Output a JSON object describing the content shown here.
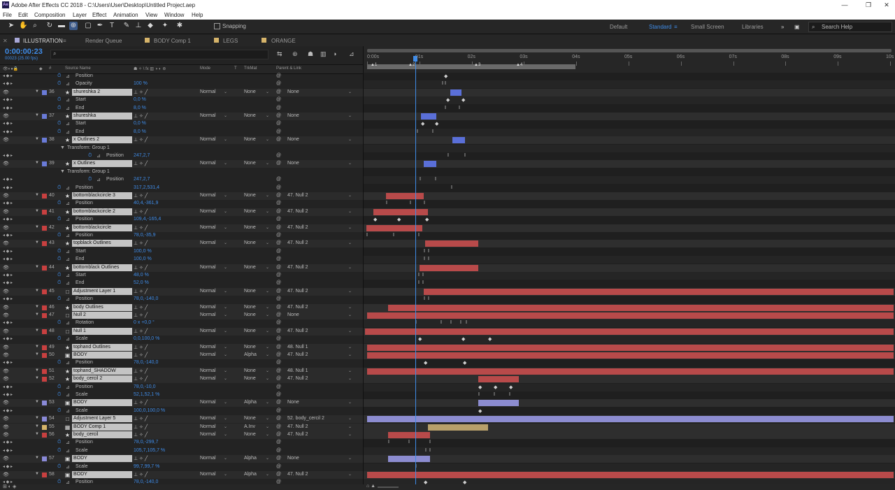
{
  "window": {
    "title": "Adobe After Effects CC 2018 - C:\\Users\\User\\Desktop\\Untitled Project.aep",
    "logo_text": "Ae",
    "minimize": "—",
    "maximize": "❐",
    "close": "✕"
  },
  "menu": [
    "File",
    "Edit",
    "Composition",
    "Layer",
    "Effect",
    "Animation",
    "View",
    "Window",
    "Help"
  ],
  "toolbar": {
    "snapping_label": "Snapping",
    "workspaces": [
      "Default",
      "Standard",
      "Small Screen",
      "Libraries"
    ],
    "active_workspace": "Standard",
    "more": "»",
    "search_help_placeholder": "Search Help"
  },
  "tabs": [
    {
      "label": "ILLUSTRATION",
      "color": "#a8a8d8",
      "active": true
    },
    {
      "label": "Render Queue",
      "color": "",
      "active": false
    },
    {
      "label": "BODY Comp 1",
      "color": "#d6b46a",
      "active": false
    },
    {
      "label": "LEGS",
      "color": "#d6b46a",
      "active": false
    },
    {
      "label": "ORANGE",
      "color": "#d6b46a",
      "active": false
    }
  ],
  "timecode": "0:00:00:23",
  "timecode_sub": "00023 (25.00 fps)",
  "columns": {
    "source_name": "Source Name",
    "mode": "Mode",
    "t": "T",
    "trkmat": "TrkMat",
    "parent": "Parent & Link"
  },
  "ruler": {
    "ticks": [
      "0:00s",
      "01s",
      "02s",
      "03s",
      "04s",
      "05s",
      "06s",
      "07s",
      "08s",
      "09s",
      "10s"
    ],
    "markers": [
      "1",
      "2",
      "3",
      "4"
    ]
  },
  "rows": [
    {
      "kind": "prop",
      "indent": 1,
      "name": "Position",
      "value": "",
      "kfs": [
        115
      ]
    },
    {
      "kind": "prop",
      "indent": 1,
      "name": "Opacity",
      "value": "100 %",
      "kfs": [
        112,
        116
      ]
    },
    {
      "kind": "layer",
      "num": "36",
      "name": "shureshka 2",
      "color": "#6a7bd8",
      "type": "★",
      "mode": "Normal",
      "trk": "None",
      "parent": "None",
      "bar": [
        124,
        140
      ],
      "barcolor": "#5a6fd8"
    },
    {
      "kind": "prop",
      "indent": 1,
      "name": "Start",
      "value": "0,0 %",
      "kfs": [
        118,
        140
      ]
    },
    {
      "kind": "prop",
      "indent": 1,
      "name": "End",
      "value": "8,0 %",
      "kfs": [
        116,
        136
      ]
    },
    {
      "kind": "layer",
      "num": "37",
      "name": "shureshka",
      "color": "#6a7bd8",
      "type": "★",
      "mode": "Normal",
      "trk": "None",
      "parent": "None",
      "bar": [
        82,
        104
      ],
      "barcolor": "#5a6fd8"
    },
    {
      "kind": "prop",
      "indent": 1,
      "name": "Start",
      "value": "0,0 %",
      "kfs": [
        82,
        102
      ]
    },
    {
      "kind": "prop",
      "indent": 1,
      "name": "End",
      "value": "8,0 %",
      "kfs": [
        76,
        98
      ]
    },
    {
      "kind": "layer",
      "num": "38",
      "name": "x Outlines 2",
      "color": "#6a7bd8",
      "type": "★",
      "mode": "Normal",
      "trk": "None",
      "parent": "None",
      "bar": [
        127,
        145
      ],
      "barcolor": "#5a6fd8"
    },
    {
      "kind": "group",
      "indent": 2,
      "name": "Transform: Group 1"
    },
    {
      "kind": "prop",
      "indent": 3,
      "name": "Position",
      "value": "247,2,7",
      "kfs": [
        120,
        144
      ]
    },
    {
      "kind": "layer",
      "num": "39",
      "name": "x Outlines",
      "color": "#6a7bd8",
      "type": "★",
      "mode": "Normal",
      "trk": "None",
      "parent": "None",
      "bar": [
        86,
        104
      ],
      "barcolor": "#5a6fd8"
    },
    {
      "kind": "group",
      "indent": 2,
      "name": "Transform: Group 1"
    },
    {
      "kind": "prop",
      "indent": 3,
      "name": "Position",
      "value": "247,2,7",
      "kfs": [
        80,
        102
      ]
    },
    {
      "kind": "prop",
      "indent": 1,
      "name": "Position",
      "value": "317,2,531,4",
      "kfs": [
        125
      ]
    },
    {
      "kind": "layer",
      "num": "40",
      "name": "bottomblackcircle 3",
      "color": "#c84040",
      "type": "★",
      "mode": "Normal",
      "trk": "None",
      "parent": "47. Null 2",
      "bar": [
        32,
        86
      ],
      "barcolor": "#b84a4a"
    },
    {
      "kind": "prop",
      "indent": 1,
      "name": "Position",
      "value": "40,4,-361,9",
      "kfs": [
        32,
        66,
        86
      ]
    },
    {
      "kind": "layer",
      "num": "41",
      "name": "bottomblackcircle 2",
      "color": "#c84040",
      "type": "★",
      "mode": "Normal",
      "trk": "None",
      "parent": "47. Null 2",
      "bar": [
        14,
        92
      ],
      "barcolor": "#b84a4a"
    },
    {
      "kind": "prop",
      "indent": 1,
      "name": "Position",
      "value": "109,4,-165,4",
      "kfs": [
        14,
        48,
        88
      ]
    },
    {
      "kind": "layer",
      "num": "42",
      "name": "bottomblackcircle",
      "color": "#c84040",
      "type": "★",
      "mode": "Normal",
      "trk": "None",
      "parent": "47. Null 2",
      "bar": [
        4,
        84
      ],
      "barcolor": "#b84a4a"
    },
    {
      "kind": "prop",
      "indent": 1,
      "name": "Position",
      "value": "78,0,-35,9",
      "kfs": [
        4,
        42,
        78
      ]
    },
    {
      "kind": "layer",
      "num": "43",
      "name": "topblack Outlines",
      "color": "#c84040",
      "type": "★",
      "mode": "Normal",
      "trk": "None",
      "parent": "47. Null 2",
      "bar": [
        88,
        164
      ],
      "barcolor": "#b84a4a"
    },
    {
      "kind": "prop",
      "indent": 1,
      "name": "Start",
      "value": "100,0 %",
      "kfs": [
        86,
        92
      ]
    },
    {
      "kind": "prop",
      "indent": 1,
      "name": "End",
      "value": "100,0 %",
      "kfs": [
        86,
        92
      ]
    },
    {
      "kind": "layer",
      "num": "44",
      "name": "bottomblack Outlines",
      "color": "#c84040",
      "type": "★",
      "mode": "Normal",
      "trk": "None",
      "parent": "47. Null 2",
      "bar": [
        80,
        164
      ],
      "barcolor": "#b84a4a"
    },
    {
      "kind": "prop",
      "indent": 1,
      "name": "Start",
      "value": "48,0 %",
      "kfs": [
        78,
        84
      ]
    },
    {
      "kind": "prop",
      "indent": 1,
      "name": "End",
      "value": "52,0 %",
      "kfs": [
        78,
        84
      ]
    },
    {
      "kind": "layer",
      "num": "45",
      "name": "Adjustment Layer 1",
      "color": "#c84040",
      "type": "□",
      "mode": "Normal",
      "trk": "None",
      "parent": "47. Null 2",
      "bar": [
        86,
        758
      ],
      "barcolor": "#b84a4a"
    },
    {
      "kind": "prop",
      "indent": 1,
      "name": "Position",
      "value": "78,0,-140,0",
      "kfs": [
        86,
        92
      ]
    },
    {
      "kind": "layer",
      "num": "46",
      "name": "body Outlines",
      "color": "#c84040",
      "type": "★",
      "mode": "Normal",
      "trk": "None",
      "parent": "47. Null 2",
      "bar": [
        35,
        758
      ],
      "barcolor": "#b84a4a"
    },
    {
      "kind": "layer",
      "num": "47",
      "name": "Null 2",
      "color": "#c84040",
      "type": "□",
      "mode": "Normal",
      "trk": "None",
      "parent": "None",
      "bar": [
        5,
        758
      ],
      "barcolor": "#b84a4a"
    },
    {
      "kind": "prop",
      "indent": 1,
      "name": "Rotation",
      "value": "0 x +0,0 °",
      "kfs": [
        74,
        110,
        124,
        138,
        146
      ]
    },
    {
      "kind": "layer",
      "num": "48",
      "name": "Null 1",
      "color": "#c84040",
      "type": "□",
      "mode": "Normal",
      "trk": "None",
      "parent": "47. Null 2",
      "bar": [
        2,
        758
      ],
      "barcolor": "#b84a4a"
    },
    {
      "kind": "prop",
      "indent": 1,
      "name": "Scale",
      "value": "0,0,100,0 %",
      "kfs": [
        78,
        140,
        178
      ]
    },
    {
      "kind": "layer",
      "num": "49",
      "name": "tophand Outlines",
      "color": "#c84040",
      "type": "★",
      "mode": "Normal",
      "trk": "None",
      "parent": "48. Null 1",
      "bar": [
        5,
        758
      ],
      "barcolor": "#b84a4a"
    },
    {
      "kind": "layer",
      "num": "50",
      "name": "BODY",
      "color": "#c84040",
      "type": "▣",
      "mode": "Normal",
      "trk": "Alpha",
      "parent": "47. Null 2",
      "bar": [
        5,
        758
      ],
      "barcolor": "#b84a4a"
    },
    {
      "kind": "prop",
      "indent": 1,
      "name": "Position",
      "value": "78,0,-140,0",
      "kfs": [
        86,
        142
      ]
    },
    {
      "kind": "layer",
      "num": "51",
      "name": "tophand_SHADOW",
      "color": "#c84040",
      "type": "★",
      "mode": "Normal",
      "trk": "None",
      "parent": "48. Null 1",
      "bar": [
        5,
        758
      ],
      "barcolor": "#b84a4a"
    },
    {
      "kind": "layer",
      "num": "52",
      "name": "body_cercil 2",
      "color": "#c84040",
      "type": "★",
      "mode": "Normal",
      "trk": "None",
      "parent": "47. Null 2",
      "bar": [
        164,
        222
      ],
      "barcolor": "#b84a4a"
    },
    {
      "kind": "prop",
      "indent": 1,
      "name": "Position",
      "value": "78,0,-10,0",
      "kfs": [
        164,
        186,
        208
      ]
    },
    {
      "kind": "prop",
      "indent": 1,
      "name": "Scale",
      "value": "52,1,52,1 %",
      "kfs": [
        164,
        186,
        208
      ]
    },
    {
      "kind": "layer",
      "num": "53",
      "name": "BODY",
      "color": "#8a8ad8",
      "type": "▣",
      "mode": "Normal",
      "trk": "Alpha",
      "parent": "None",
      "bar": [
        164,
        222
      ],
      "barcolor": "#8c8cd0"
    },
    {
      "kind": "prop",
      "indent": 1,
      "name": "Scale",
      "value": "100,0,100,0 %",
      "kfs": [
        164
      ]
    },
    {
      "kind": "layer",
      "num": "54",
      "name": "Adjustment Layer 5",
      "color": "#8a8ad8",
      "type": "□",
      "mode": "Normal",
      "trk": "None",
      "parent": "52. body_cercil 2",
      "bar": [
        5,
        758
      ],
      "barcolor": "#8c8cd0"
    },
    {
      "kind": "layer",
      "num": "55",
      "name": "BODY Comp 1",
      "color": "#d6b46a",
      "type": "▦",
      "mode": "Normal",
      "trk": "A.Inv",
      "parent": "47. Null 2",
      "bar": [
        92,
        178
      ],
      "barcolor": "#b8a06a"
    },
    {
      "kind": "layer",
      "num": "56",
      "name": "body_cercil",
      "color": "#c84040",
      "type": "★",
      "mode": "Normal",
      "trk": "None",
      "parent": "47. Null 2",
      "bar": [
        35,
        95
      ],
      "barcolor": "#b84a4a"
    },
    {
      "kind": "prop",
      "indent": 1,
      "name": "Position",
      "value": "78,0,-299,7",
      "kfs": [
        35,
        64,
        94
      ]
    },
    {
      "kind": "prop",
      "indent": 1,
      "name": "Scale",
      "value": "105,7,105,7 %",
      "kfs": [
        88,
        94
      ]
    },
    {
      "kind": "layer",
      "num": "57",
      "name": "BODY",
      "color": "#8a8ad8",
      "type": "▣",
      "mode": "Normal",
      "trk": "Alpha",
      "parent": "None",
      "bar": [
        35,
        95
      ],
      "barcolor": "#8c8cd0"
    },
    {
      "kind": "prop",
      "indent": 1,
      "name": "Scale",
      "value": "99,7,99,7 %",
      "kfs": [
        74
      ]
    },
    {
      "kind": "layer",
      "num": "58",
      "name": "BODY",
      "color": "#c84040",
      "type": "▣",
      "mode": "Normal",
      "trk": "Alpha",
      "parent": "47. Null 2",
      "bar": [
        5,
        758
      ],
      "barcolor": "#b84a4a"
    },
    {
      "kind": "prop",
      "indent": 1,
      "name": "Position",
      "value": "78,0,-140,0",
      "kfs": [
        86,
        142
      ]
    }
  ]
}
